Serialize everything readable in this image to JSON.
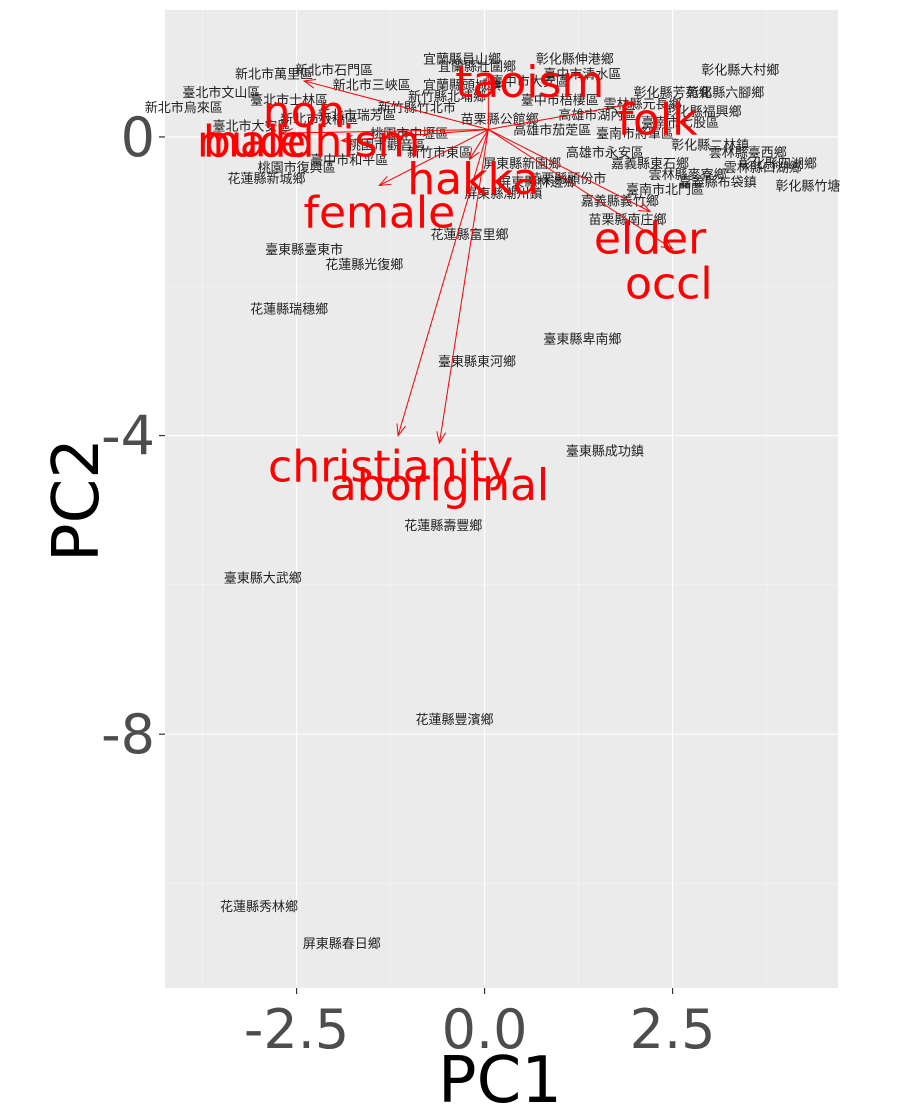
{
  "chart_data": {
    "type": "scatter",
    "xlabel": "PC1",
    "ylabel": "PC2",
    "xlim": [
      -4.25,
      4.7
    ],
    "ylim": [
      -11.4,
      1.7
    ],
    "x_ticks": [
      -2.5,
      0.0,
      2.5
    ],
    "x_tick_labels": [
      "-2.5",
      "0.0",
      "2.5"
    ],
    "y_ticks": [
      0,
      -4,
      -8
    ],
    "y_tick_labels": [
      "0",
      "-4",
      "-8"
    ],
    "grid": true,
    "points": [
      {
        "label": "臺東縣臺東市",
        "x": -2.4,
        "y": -1.5
      },
      {
        "label": "花蓮縣光復鄉",
        "x": -1.6,
        "y": -1.7
      },
      {
        "label": "花蓮縣富里鄉",
        "x": -0.2,
        "y": -1.3
      },
      {
        "label": "花蓮縣瑞穗鄉",
        "x": -2.6,
        "y": -2.3
      },
      {
        "label": "臺東縣東河鄉",
        "x": -0.1,
        "y": -3.0
      },
      {
        "label": "臺東縣卑南鄉",
        "x": 1.3,
        "y": -2.7
      },
      {
        "label": "臺東縣成功鎮",
        "x": 1.6,
        "y": -4.2
      },
      {
        "label": "花蓮縣壽豐鄉",
        "x": -0.55,
        "y": -5.2
      },
      {
        "label": "臺東縣大武鄉",
        "x": -2.95,
        "y": -5.9
      },
      {
        "label": "花蓮縣豐濱鄉",
        "x": -0.4,
        "y": -7.8
      },
      {
        "label": "花蓮縣秀林鄉",
        "x": -3.0,
        "y": -10.3
      },
      {
        "label": "屏東縣春日鄉",
        "x": -1.9,
        "y": -10.8
      },
      {
        "label": "屏東縣潮州鎮",
        "x": 0.25,
        "y": -0.75
      },
      {
        "label": "苗栗縣南庄鄉",
        "x": 1.9,
        "y": -1.1
      },
      {
        "label": "彰化縣大村鄉",
        "x": 3.4,
        "y": 0.9
      },
      {
        "label": "彰化縣六腳鄉",
        "x": 3.2,
        "y": 0.6
      },
      {
        "label": "彰化縣竹塘",
        "x": 4.3,
        "y": -0.65
      },
      {
        "label": "彰化縣四湖鄉",
        "x": 3.9,
        "y": -0.35
      },
      {
        "label": "彰化縣伸港鄉",
        "x": 1.2,
        "y": 1.05
      },
      {
        "label": "宜蘭縣員山鄉",
        "x": -0.3,
        "y": 1.05
      },
      {
        "label": "新北市萬里區",
        "x": -2.8,
        "y": 0.85
      },
      {
        "label": "臺北市文山區",
        "x": -3.5,
        "y": 0.6
      },
      {
        "label": "新北市烏來區",
        "x": -4.0,
        "y": 0.4
      },
      {
        "label": "桃園市復興區",
        "x": -2.5,
        "y": -0.4
      },
      {
        "label": "花蓮縣新城鄉",
        "x": -2.9,
        "y": -0.55
      },
      {
        "label": "臺中市和平區",
        "x": -1.8,
        "y": -0.3
      },
      {
        "label": "雲林縣麥寮鄉",
        "x": 2.7,
        "y": -0.5
      },
      {
        "label": "嘉義縣東石鄉",
        "x": 2.2,
        "y": -0.35
      },
      {
        "label": "苗栗縣頭份市",
        "x": 1.1,
        "y": -0.55
      },
      {
        "label": "彰化縣二林鎮",
        "x": 3.0,
        "y": -0.1
      },
      {
        "label": "臺南市七股區",
        "x": 2.6,
        "y": 0.2
      },
      {
        "label": "雲林縣元長鄉",
        "x": 2.1,
        "y": 0.45
      },
      {
        "label": "高雄市湖內區",
        "x": 1.5,
        "y": 0.3
      },
      {
        "label": "臺中市大安區",
        "x": 0.6,
        "y": 0.75
      },
      {
        "label": "新竹縣北埔鄉",
        "x": -0.5,
        "y": 0.55
      },
      {
        "label": "新北市三峽區",
        "x": -1.5,
        "y": 0.7
      },
      {
        "label": "臺北市大安區",
        "x": -3.1,
        "y": 0.15
      },
      {
        "label": "新北市板橋區",
        "x": -2.2,
        "y": 0.25
      },
      {
        "label": "桃園市中壢區",
        "x": -1.0,
        "y": 0.05
      },
      {
        "label": "新竹市東區",
        "x": -0.6,
        "y": -0.2
      },
      {
        "label": "臺南市北門區",
        "x": 2.4,
        "y": -0.7
      },
      {
        "label": "嘉義縣義竹鄉",
        "x": 1.8,
        "y": -0.85
      },
      {
        "label": "高雄市茄萣區",
        "x": 0.9,
        "y": 0.1
      },
      {
        "label": "屏東縣新園鄉",
        "x": 0.5,
        "y": -0.35
      },
      {
        "label": "臺中市梧棲區",
        "x": 1.0,
        "y": 0.5
      },
      {
        "label": "宜蘭縣壯圍鄉",
        "x": -0.1,
        "y": 0.95
      },
      {
        "label": "新北市石門區",
        "x": -2.0,
        "y": 0.9
      },
      {
        "label": "苗栗縣公館鄉",
        "x": 0.2,
        "y": 0.25
      },
      {
        "label": "彰化縣福興鄉",
        "x": 2.9,
        "y": 0.35
      },
      {
        "label": "雲林縣臺西鄉",
        "x": 3.5,
        "y": -0.2
      },
      {
        "label": "嘉義縣布袋鎮",
        "x": 3.1,
        "y": -0.6
      },
      {
        "label": "臺南市將軍區",
        "x": 2.0,
        "y": 0.05
      },
      {
        "label": "新竹縣竹北市",
        "x": -0.9,
        "y": 0.4
      },
      {
        "label": "桃園市觀音區",
        "x": -1.3,
        "y": -0.1
      },
      {
        "label": "臺北市士林區",
        "x": -2.6,
        "y": 0.5
      },
      {
        "label": "新北市瑞芳區",
        "x": -1.7,
        "y": 0.3
      },
      {
        "label": "宜蘭縣頭城鎮",
        "x": -0.3,
        "y": 0.7
      },
      {
        "label": "臺中市清水區",
        "x": 1.3,
        "y": 0.85
      },
      {
        "label": "彰化縣芳苑鄉",
        "x": 2.5,
        "y": 0.6
      },
      {
        "label": "雲林縣口湖鄉",
        "x": 3.7,
        "y": -0.4
      },
      {
        "label": "屏東縣林邊鄉",
        "x": 0.7,
        "y": -0.6
      },
      {
        "label": "高雄市永安區",
        "x": 1.6,
        "y": -0.2
      }
    ],
    "loadings": [
      {
        "name": "taoism",
        "x": 0.05,
        "y": 0.85
      },
      {
        "name": "folk",
        "x": 2.0,
        "y": 0.45
      },
      {
        "name": "non",
        "x": -2.4,
        "y": 0.75
      },
      {
        "name": "buddhism",
        "x": -1.9,
        "y": -0.05
      },
      {
        "name": "male",
        "x": -2.7,
        "y": 0.05
      },
      {
        "name": "hakka",
        "x": -0.2,
        "y": -0.3
      },
      {
        "name": "female",
        "x": -1.4,
        "y": -0.65
      },
      {
        "name": "elder",
        "x": 2.2,
        "y": -1.0
      },
      {
        "name": "occl",
        "x": 2.5,
        "y": -1.5
      },
      {
        "name": "christianity",
        "x": -1.15,
        "y": -4.0
      },
      {
        "name": "aboriginal",
        "x": -0.6,
        "y": -4.1
      }
    ],
    "loading_labels": [
      {
        "text": "taoism",
        "x": 0.6,
        "y": 0.75
      },
      {
        "text": "folk",
        "x": 2.3,
        "y": 0.25
      },
      {
        "text": "non",
        "x": -2.4,
        "y": 0.35
      },
      {
        "text": "buddhism",
        "x": -2.3,
        "y": -0.05
      },
      {
        "text": "male",
        "x": -3.1,
        "y": -0.05
      },
      {
        "text": "hakka",
        "x": -0.15,
        "y": -0.55
      },
      {
        "text": "female",
        "x": -1.4,
        "y": -1.0
      },
      {
        "text": "elder",
        "x": 2.2,
        "y": -1.35
      },
      {
        "text": "occl",
        "x": 2.45,
        "y": -1.95
      },
      {
        "text": "christianity",
        "x": -1.25,
        "y": -4.4
      },
      {
        "text": "aboriginal",
        "x": -0.6,
        "y": -4.65
      }
    ],
    "origin": [
      0.05,
      0.1
    ]
  }
}
